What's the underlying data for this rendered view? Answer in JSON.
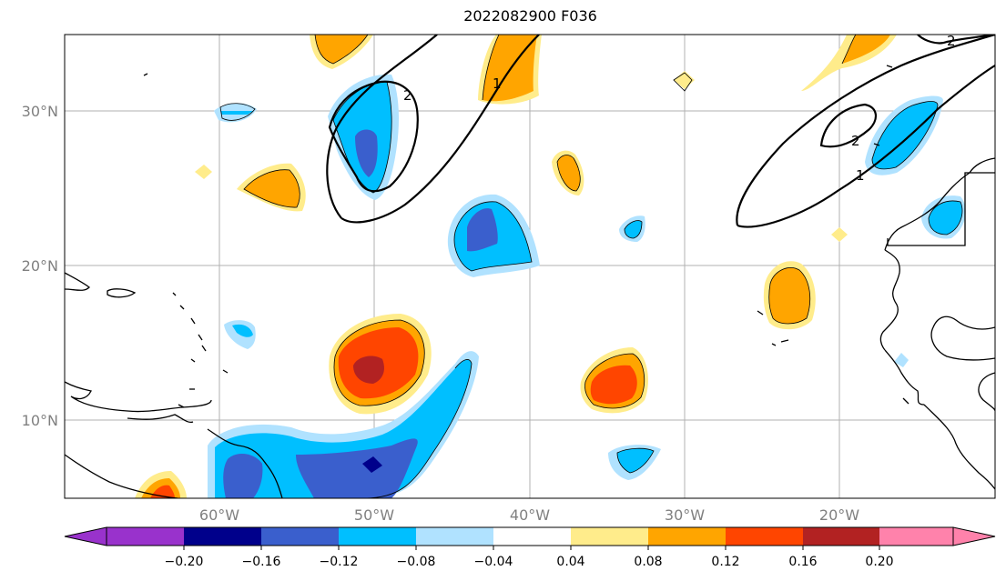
{
  "title": "2022082900 F036",
  "map": {
    "lon_range": [
      -70,
      -10
    ],
    "lat_range": [
      5,
      35
    ],
    "lon_ticks": [
      {
        "lon": -60,
        "label": "60°W"
      },
      {
        "lon": -50,
        "label": "50°W"
      },
      {
        "lon": -40,
        "label": "40°W"
      },
      {
        "lon": -30,
        "label": "30°W"
      },
      {
        "lon": -20,
        "label": "20°W"
      }
    ],
    "lat_ticks": [
      {
        "lat": 30,
        "label": "30°N"
      },
      {
        "lat": 20,
        "label": "20°N"
      },
      {
        "lat": 10,
        "label": "10°N"
      }
    ],
    "contour_labels": [
      "2",
      "1",
      "2",
      "1",
      "2"
    ]
  },
  "colorbar": {
    "colors": [
      "#9932cc",
      "#00008b",
      "#3a5fcd",
      "#00bfff",
      "#b0e2ff",
      "#ffffff",
      "#ffec8b",
      "#ffa500",
      "#ff4500",
      "#b22222",
      "#ff82ab"
    ],
    "labels": [
      "−0.20",
      "−0.16",
      "−0.12",
      "−0.08",
      "−0.04",
      "0.04",
      "0.08",
      "0.12",
      "0.16",
      "0.20"
    ]
  }
}
